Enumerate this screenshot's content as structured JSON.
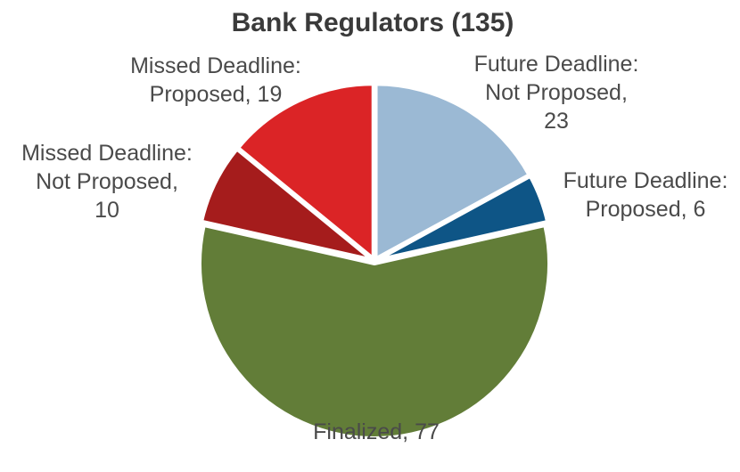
{
  "chart_data": {
    "type": "pie",
    "title": "Bank Regulators (135)",
    "slices": [
      {
        "label": "Future Deadline:\nNot Proposed,\n23",
        "name": "Future Deadline: Not Proposed",
        "value": 23,
        "color": "#9bb9d4"
      },
      {
        "label": "Future Deadline:\nProposed, 6",
        "name": "Future Deadline: Proposed",
        "value": 6,
        "color": "#0e5586"
      },
      {
        "label": "Finalized, 77",
        "name": "Finalized",
        "value": 77,
        "color": "#627d38"
      },
      {
        "label": "Missed Deadline:\nNot Proposed,\n10",
        "name": "Missed Deadline: Not Proposed",
        "value": 10,
        "color": "#a51c1c"
      },
      {
        "label": "Missed Deadline:\nProposed, 19",
        "name": "Missed Deadline: Proposed",
        "value": 19,
        "color": "#db2426"
      }
    ],
    "legend": "none"
  }
}
